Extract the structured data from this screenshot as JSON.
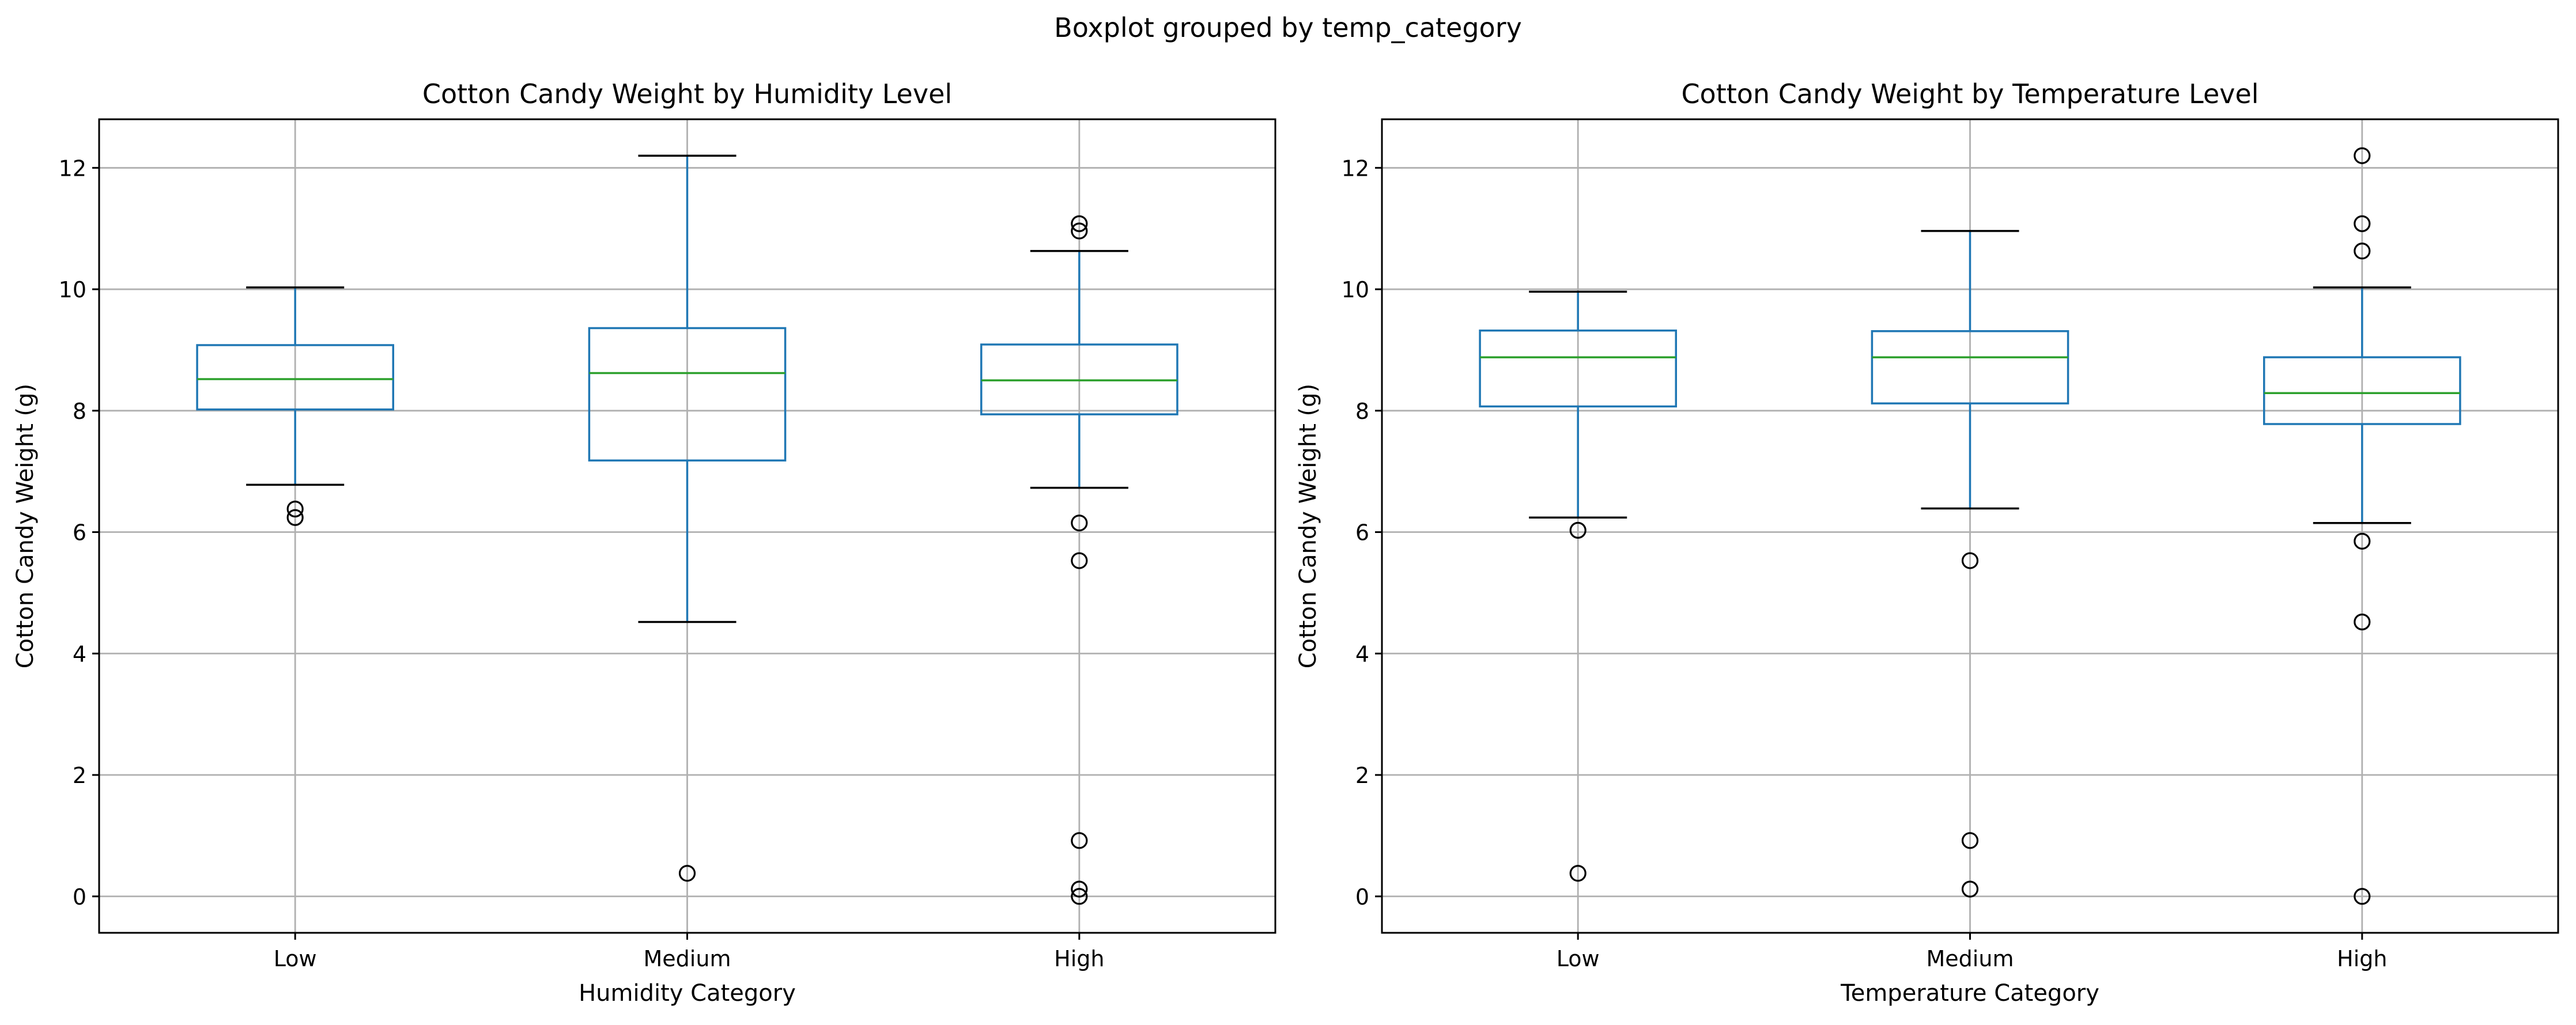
{
  "figure": {
    "suptitle": "Boxplot grouped by temp_category"
  },
  "colors": {
    "box": "#1f77b4",
    "median": "#2ca02c",
    "whisker_cap": "#000000",
    "grid": "#b0b0b0",
    "axes": "#000000"
  },
  "chart_data": [
    {
      "type": "boxplot",
      "title": "Cotton Candy Weight by Humidity Level",
      "xlabel": "Humidity Category",
      "ylabel": "Cotton Candy Weight (g)",
      "ylim": [
        -0.6,
        12.8
      ],
      "yticks": [
        "0",
        "2",
        "4",
        "6",
        "8",
        "10",
        "12"
      ],
      "grid": true,
      "categories": [
        "Low",
        "Medium",
        "High"
      ],
      "boxes": [
        {
          "whislo": 6.78,
          "q1": 8.02,
          "med": 8.52,
          "q3": 9.08,
          "whishi": 10.03,
          "fliers": [
            6.38,
            6.24
          ]
        },
        {
          "whislo": 4.52,
          "q1": 7.18,
          "med": 8.62,
          "q3": 9.36,
          "whishi": 12.2,
          "fliers": [
            0.38
          ]
        },
        {
          "whislo": 6.73,
          "q1": 7.94,
          "med": 8.5,
          "q3": 9.09,
          "whishi": 10.63,
          "fliers": [
            11.08,
            10.96,
            6.15,
            5.53,
            0.92,
            0.12,
            0.0
          ]
        }
      ]
    },
    {
      "type": "boxplot",
      "title": "Cotton Candy Weight by Temperature Level",
      "xlabel": "Temperature Category",
      "ylabel": "Cotton Candy Weight (g)",
      "ylim": [
        -0.6,
        12.8
      ],
      "yticks": [
        "0",
        "2",
        "4",
        "6",
        "8",
        "10",
        "12"
      ],
      "grid": true,
      "categories": [
        "Low",
        "Medium",
        "High"
      ],
      "boxes": [
        {
          "whislo": 6.24,
          "q1": 8.07,
          "med": 8.88,
          "q3": 9.32,
          "whishi": 9.96,
          "fliers": [
            6.03,
            0.38
          ]
        },
        {
          "whislo": 6.39,
          "q1": 8.12,
          "med": 8.88,
          "q3": 9.31,
          "whishi": 10.96,
          "fliers": [
            5.53,
            0.92,
            0.12
          ]
        },
        {
          "whislo": 6.15,
          "q1": 7.78,
          "med": 8.29,
          "q3": 8.88,
          "whishi": 10.03,
          "fliers": [
            12.2,
            11.08,
            10.63,
            5.85,
            4.52,
            0.0
          ]
        }
      ]
    }
  ]
}
